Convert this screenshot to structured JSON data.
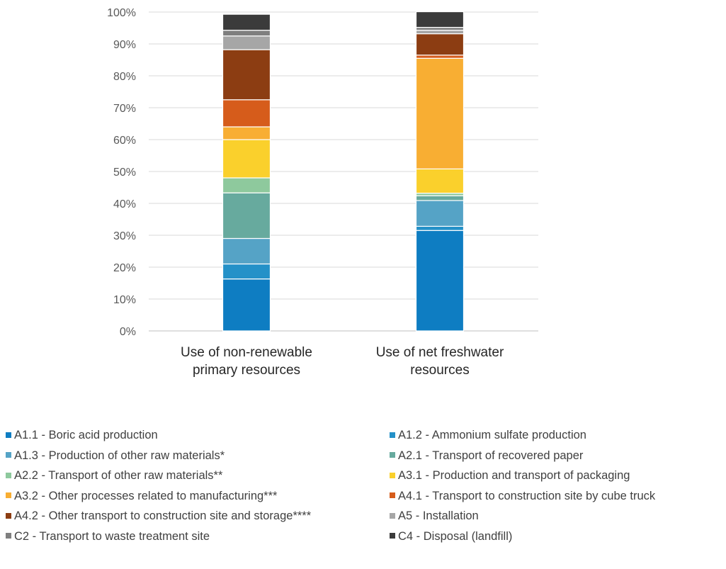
{
  "chart_data": {
    "type": "bar",
    "stacked": true,
    "percent": true,
    "categories": [
      "Use of non-renewable primary resources",
      "Use of net freshwater resources"
    ],
    "category_lines": [
      [
        "Use of non-renewable",
        "primary resources"
      ],
      [
        "Use of net freshwater",
        "resources"
      ]
    ],
    "y_ticks": [
      "0%",
      "10%",
      "20%",
      "30%",
      "40%",
      "50%",
      "60%",
      "70%",
      "80%",
      "90%",
      "100%"
    ],
    "ylim": [
      0,
      100
    ],
    "grid": true,
    "legend_position": "bottom",
    "series": [
      {
        "name": "A1.1 - Boric acid production",
        "color": "#0e7dc2",
        "values": [
          16.3,
          31.5
        ]
      },
      {
        "name": "A1.2 - Ammonium sulfate production",
        "color": "#2491c8",
        "values": [
          4.7,
          1.3
        ]
      },
      {
        "name": "A1.3 - Production of other raw materials*",
        "color": "#55a3c6",
        "values": [
          8.0,
          8.1
        ]
      },
      {
        "name": "A2.1 - Transport of recovered paper",
        "color": "#67aa9e",
        "values": [
          14.3,
          1.5
        ]
      },
      {
        "name": "A2.2 - Transport of other raw materials**",
        "color": "#8ec99d",
        "values": [
          4.7,
          0.8
        ]
      },
      {
        "name": "A3.1 - Production and transport of packaging",
        "color": "#fad02c",
        "values": [
          12.0,
          7.6
        ]
      },
      {
        "name": "A3.2 - Other processes related to manufacturing***",
        "color": "#f8ae33",
        "values": [
          4.0,
          34.7
        ]
      },
      {
        "name": "A4.1 - Transport to construction site by cube truck",
        "color": "#d65c1b",
        "values": [
          8.5,
          1.0
        ]
      },
      {
        "name": "A4.2 - Other transport to construction site and storage****",
        "color": "#8c3d12",
        "values": [
          15.7,
          6.7
        ]
      },
      {
        "name": "A5 - Installation",
        "color": "#a6a6a6",
        "values": [
          4.3,
          1.1
        ]
      },
      {
        "name": "C2 -  Transport to waste treatment site",
        "color": "#7f7f7f",
        "values": [
          1.8,
          0.9
        ]
      },
      {
        "name": "C4 - Disposal (landfill)",
        "color": "#3b3b3b",
        "values": [
          5.0,
          4.9
        ]
      }
    ]
  }
}
